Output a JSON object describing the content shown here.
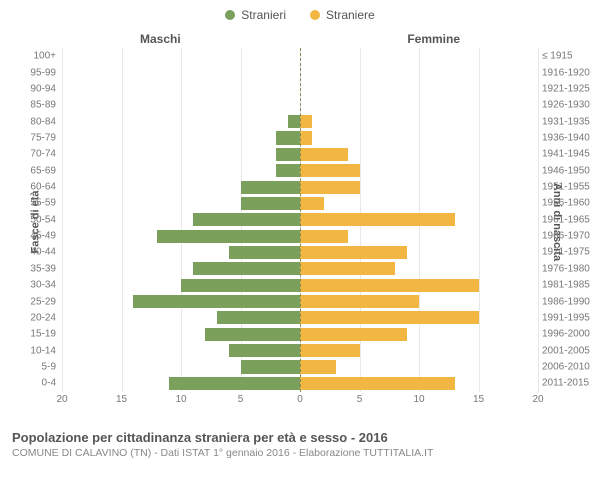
{
  "legend": {
    "male": {
      "label": "Stranieri",
      "color": "#7ba05b"
    },
    "female": {
      "label": "Straniere",
      "color": "#f2b742"
    }
  },
  "chart": {
    "type": "bar-pyramid",
    "left_header": "Maschi",
    "right_header": "Femmine",
    "y_left_title": "Fasce di età",
    "y_right_title": "Anni di nascita",
    "x_max": 20,
    "x_ticks": [
      20,
      15,
      10,
      5,
      0,
      5,
      10,
      15,
      20
    ],
    "grid_positions_pct": [
      0,
      12.5,
      25,
      37.5,
      50,
      62.5,
      75,
      87.5,
      100
    ],
    "male_color": "#7ba05b",
    "female_color": "#f2b742",
    "background": "#ffffff",
    "grid_color": "#e8e8e8",
    "rows": [
      {
        "age": "100+",
        "birth": "≤ 1915",
        "m": 0,
        "f": 0
      },
      {
        "age": "95-99",
        "birth": "1916-1920",
        "m": 0,
        "f": 0
      },
      {
        "age": "90-94",
        "birth": "1921-1925",
        "m": 0,
        "f": 0
      },
      {
        "age": "85-89",
        "birth": "1926-1930",
        "m": 0,
        "f": 0
      },
      {
        "age": "80-84",
        "birth": "1931-1935",
        "m": 1,
        "f": 1
      },
      {
        "age": "75-79",
        "birth": "1936-1940",
        "m": 2,
        "f": 1
      },
      {
        "age": "70-74",
        "birth": "1941-1945",
        "m": 2,
        "f": 4
      },
      {
        "age": "65-69",
        "birth": "1946-1950",
        "m": 2,
        "f": 5
      },
      {
        "age": "60-64",
        "birth": "1951-1955",
        "m": 5,
        "f": 5
      },
      {
        "age": "55-59",
        "birth": "1956-1960",
        "m": 5,
        "f": 2
      },
      {
        "age": "50-54",
        "birth": "1961-1965",
        "m": 9,
        "f": 13
      },
      {
        "age": "45-49",
        "birth": "1966-1970",
        "m": 12,
        "f": 4
      },
      {
        "age": "40-44",
        "birth": "1971-1975",
        "m": 6,
        "f": 9
      },
      {
        "age": "35-39",
        "birth": "1976-1980",
        "m": 9,
        "f": 8
      },
      {
        "age": "30-34",
        "birth": "1981-1985",
        "m": 10,
        "f": 15
      },
      {
        "age": "25-29",
        "birth": "1986-1990",
        "m": 14,
        "f": 10
      },
      {
        "age": "20-24",
        "birth": "1991-1995",
        "m": 7,
        "f": 15
      },
      {
        "age": "15-19",
        "birth": "1996-2000",
        "m": 8,
        "f": 9
      },
      {
        "age": "10-14",
        "birth": "2001-2005",
        "m": 6,
        "f": 5
      },
      {
        "age": "5-9",
        "birth": "2006-2010",
        "m": 5,
        "f": 3
      },
      {
        "age": "0-4",
        "birth": "2011-2015",
        "m": 11,
        "f": 13
      }
    ]
  },
  "footer": {
    "title": "Popolazione per cittadinanza straniera per età e sesso - 2016",
    "subtitle": "COMUNE DI CALAVINO (TN) - Dati ISTAT 1° gennaio 2016 - Elaborazione TUTTITALIA.IT"
  }
}
